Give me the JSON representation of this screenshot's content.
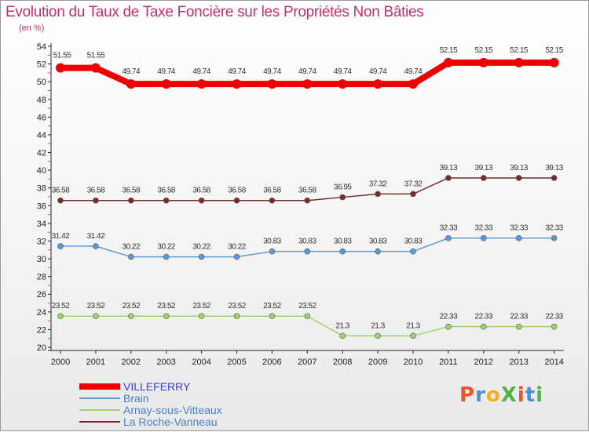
{
  "chart_data": {
    "type": "line",
    "title": "Evolution du Taux de Taxe Foncière sur les Propriétés Non Bâties",
    "ylabel": "(en %)",
    "xlabel": "",
    "ylim": [
      20,
      54
    ],
    "yticks": [
      20,
      22,
      24,
      26,
      28,
      30,
      32,
      34,
      36,
      38,
      40,
      42,
      44,
      46,
      48,
      50,
      52,
      54
    ],
    "x": [
      "2000",
      "2001",
      "2002",
      "2003",
      "2004",
      "2005",
      "2006",
      "2007",
      "2008",
      "2009",
      "2010",
      "2011",
      "2012",
      "2013",
      "2014"
    ],
    "grid": false,
    "legend_position": "bottom-left",
    "series": [
      {
        "name": "VILLEFERRY",
        "color": "#ee0000",
        "bold": true,
        "values": [
          51.55,
          51.55,
          49.74,
          49.74,
          49.74,
          49.74,
          49.74,
          49.74,
          49.74,
          49.74,
          49.74,
          52.15,
          52.15,
          52.15,
          52.15
        ],
        "labels": [
          "51.55",
          "51.55",
          "49.74",
          "49.74",
          "49.74",
          "49.74",
          "49.74",
          "49.74",
          "49.74",
          "49.74",
          "49.74",
          "52.15",
          "52.15",
          "52.15",
          "52.15"
        ]
      },
      {
        "name": "Brain",
        "color": "#5b9bd5",
        "bold": false,
        "values": [
          31.42,
          31.42,
          30.22,
          30.22,
          30.22,
          30.22,
          30.83,
          30.83,
          30.83,
          30.83,
          30.83,
          32.33,
          32.33,
          32.33,
          32.33
        ],
        "labels": [
          "31.42",
          "31.42",
          "30.22",
          "30.22",
          "30.22",
          "30.22",
          "30.83",
          "30.83",
          "30.83",
          "30.83",
          "30.83",
          "32.33",
          "32.33",
          "32.33",
          "32.33"
        ]
      },
      {
        "name": "Arnay-sous-Vitteaux",
        "color": "#9fd46a",
        "bold": false,
        "values": [
          23.52,
          23.52,
          23.52,
          23.52,
          23.52,
          23.52,
          23.52,
          23.52,
          21.3,
          21.3,
          21.3,
          22.33,
          22.33,
          22.33,
          22.33
        ],
        "labels": [
          "23.52",
          "23.52",
          "23.52",
          "23.52",
          "23.52",
          "23.52",
          "23.52",
          "23.52",
          "21.3",
          "21.3",
          "21.3",
          "22.33",
          "22.33",
          "22.33",
          "22.33"
        ]
      },
      {
        "name": "La Roche-Vanneau",
        "color": "#7a2a2e",
        "bold": false,
        "values": [
          36.58,
          36.58,
          36.58,
          36.58,
          36.58,
          36.58,
          36.58,
          36.58,
          36.95,
          37.32,
          37.32,
          39.13,
          39.13,
          39.13,
          39.13
        ],
        "labels": [
          "36.58",
          "36.58",
          "36.58",
          "36.58",
          "36.58",
          "36.58",
          "36.58",
          "36.58",
          "36.95",
          "37.32",
          "37.32",
          "39.13",
          "39.13",
          "39.13",
          "39.13"
        ]
      }
    ]
  },
  "brand": {
    "logo_text": "ProXiti",
    "letter_colors": [
      "#e8552d",
      "#4a90d9",
      "#f2b01e",
      "#56b04a",
      "#e8552d",
      "#4a90d9",
      "#56b04a"
    ]
  }
}
